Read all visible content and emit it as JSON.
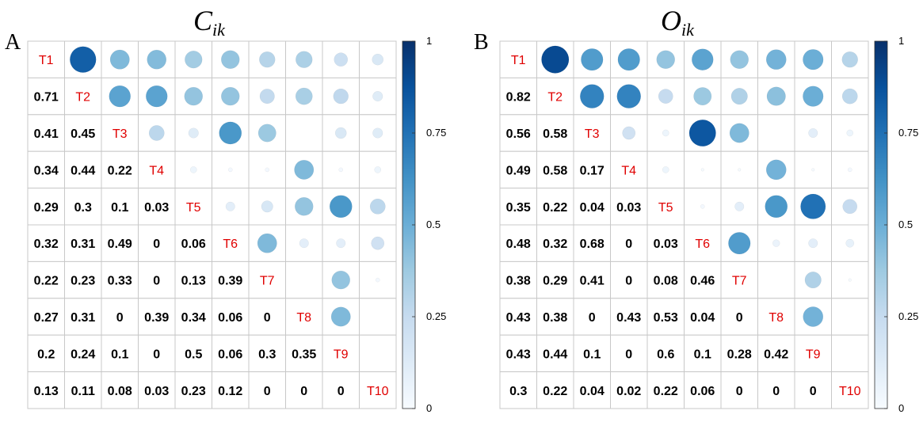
{
  "chart_data": [
    {
      "type": "heatmap",
      "panel_label": "A",
      "title_main": "C",
      "title_sub": "ik",
      "labels": [
        "T1",
        "T2",
        "T3",
        "T4",
        "T5",
        "T6",
        "T7",
        "T8",
        "T9",
        "T10"
      ],
      "lower": [
        [],
        [
          0.71
        ],
        [
          0.41,
          0.45
        ],
        [
          0.34,
          0.44,
          0.22
        ],
        [
          0.29,
          0.3,
          0.1,
          0.03
        ],
        [
          0.32,
          0.31,
          0.49,
          0,
          0.06
        ],
        [
          0.22,
          0.23,
          0.33,
          0,
          0.13,
          0.39
        ],
        [
          0.27,
          0.31,
          0,
          0.39,
          0.34,
          0.06,
          0
        ],
        [
          0.2,
          0.24,
          0.1,
          0,
          0.5,
          0.06,
          0.3,
          0.35
        ],
        [
          0.13,
          0.11,
          0.08,
          0.03,
          0.23,
          0.12,
          0,
          0,
          0
        ]
      ],
      "upper": [
        [
          null,
          0.82,
          0.45,
          0.44,
          0.36,
          0.4,
          0.3,
          0.33,
          0.22,
          0.15
        ],
        [
          null,
          null,
          0.55,
          0.55,
          0.4,
          0.4,
          0.26,
          0.34,
          0.27,
          0.12
        ],
        [
          null,
          null,
          null,
          0.28,
          0.12,
          0.6,
          0.38,
          0,
          0.15,
          0.12
        ],
        [
          null,
          null,
          null,
          null,
          0.05,
          0.02,
          0.02,
          0.45,
          0.02,
          0.05
        ],
        [
          null,
          null,
          null,
          null,
          null,
          0.1,
          0.16,
          0.4,
          0.6,
          0.28
        ],
        [
          null,
          null,
          null,
          null,
          null,
          null,
          0.45,
          0.1,
          0.1,
          0.2
        ],
        [
          null,
          null,
          null,
          null,
          null,
          null,
          null,
          0,
          0.4,
          0.02
        ],
        [
          null,
          null,
          null,
          null,
          null,
          null,
          null,
          null,
          0.45,
          0
        ],
        [
          null,
          null,
          null,
          null,
          null,
          null,
          null,
          null,
          null,
          0
        ]
      ],
      "colorbar_ticks": [
        "0",
        "0.25",
        "0.5",
        "0.75",
        "1"
      ],
      "color_range": [
        0,
        1
      ]
    },
    {
      "type": "heatmap",
      "panel_label": "B",
      "title_main": "O",
      "title_sub": "ik",
      "labels": [
        "T1",
        "T2",
        "T3",
        "T4",
        "T5",
        "T6",
        "T7",
        "T8",
        "T9",
        "T10"
      ],
      "lower": [
        [],
        [
          0.82
        ],
        [
          0.56,
          0.58
        ],
        [
          0.49,
          0.58,
          0.17
        ],
        [
          0.35,
          0.22,
          0.04,
          0.03
        ],
        [
          0.48,
          0.32,
          0.68,
          0,
          0.03
        ],
        [
          0.38,
          0.29,
          0.41,
          0,
          0.08,
          0.46
        ],
        [
          0.43,
          0.38,
          0,
          0.43,
          0.53,
          0.04,
          0
        ],
        [
          0.43,
          0.44,
          0.1,
          0,
          0.6,
          0.1,
          0.28,
          0.42
        ],
        [
          0.3,
          0.22,
          0.04,
          0.02,
          0.22,
          0.06,
          0,
          0,
          0
        ]
      ],
      "upper": [
        [
          null,
          0.9,
          0.58,
          0.58,
          0.4,
          0.55,
          0.4,
          0.48,
          0.5,
          0.3
        ],
        [
          null,
          null,
          0.68,
          0.68,
          0.25,
          0.38,
          0.32,
          0.42,
          0.5,
          0.28
        ],
        [
          null,
          null,
          null,
          0.2,
          0.05,
          0.85,
          0.45,
          0,
          0.1,
          0.05
        ],
        [
          null,
          null,
          null,
          null,
          0.05,
          0.01,
          0.01,
          0.48,
          0.01,
          0.02
        ],
        [
          null,
          null,
          null,
          null,
          null,
          0.02,
          0.1,
          0.6,
          0.75,
          0.25
        ],
        [
          null,
          null,
          null,
          null,
          null,
          null,
          0.58,
          0.06,
          0.1,
          0.08
        ],
        [
          null,
          null,
          null,
          null,
          null,
          null,
          null,
          0,
          0.32,
          0.01
        ],
        [
          null,
          null,
          null,
          null,
          null,
          null,
          null,
          null,
          0.48,
          0
        ],
        [
          null,
          null,
          null,
          null,
          null,
          null,
          null,
          null,
          null,
          0
        ]
      ],
      "colorbar_ticks": [
        "0",
        "0.25",
        "0.5",
        "0.75",
        "1"
      ],
      "color_range": [
        0,
        1
      ]
    }
  ],
  "colors": {
    "diag_label": "#e00000",
    "grid": "#c8c8c8",
    "scale": [
      "#f7fbff",
      "#deebf7",
      "#c6dbef",
      "#9ecae1",
      "#6baed6",
      "#4292c6",
      "#2171b5",
      "#08519c",
      "#08306b"
    ]
  }
}
